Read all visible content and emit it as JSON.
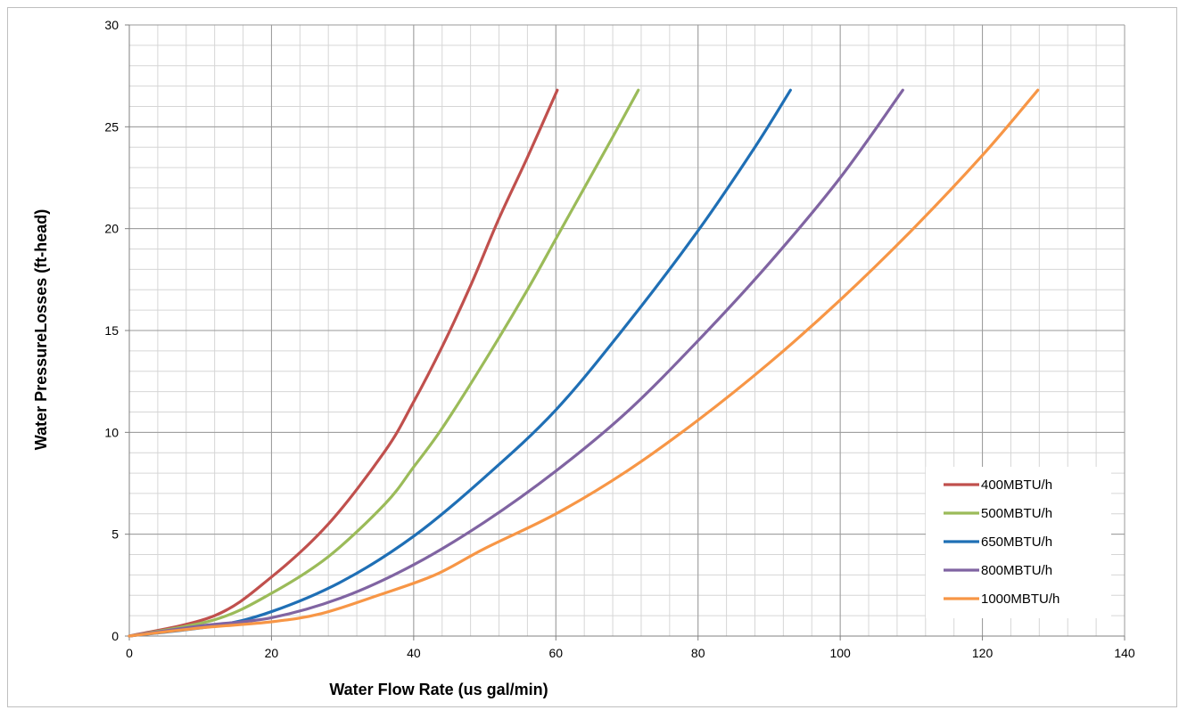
{
  "chart_data": {
    "type": "line",
    "title": "",
    "xlabel": "Water Flow Rate (us gal/min)",
    "ylabel": "Water PressureLosses (ft-head)",
    "xlim": [
      0,
      140
    ],
    "ylim": [
      0,
      30
    ],
    "x_ticks": [
      0,
      20,
      40,
      60,
      80,
      100,
      120,
      140
    ],
    "y_ticks": [
      0,
      5,
      10,
      15,
      20,
      25,
      30
    ],
    "x_ticks_labels": [
      "0",
      "20",
      "40",
      "60",
      "80",
      "100",
      "120",
      "140"
    ],
    "y_ticks_labels": [
      "0",
      "5",
      "10",
      "15",
      "20",
      "25",
      "30"
    ],
    "grid": true,
    "legend_position": "bottom-right",
    "series": [
      {
        "name": "400MBTU/h",
        "color": "#c0504d",
        "x": [
          0,
          12,
          20,
          28,
          36,
          40,
          44,
          48,
          52,
          56,
          60.2
        ],
        "y": [
          0,
          1.0,
          2.9,
          5.5,
          9.1,
          11.5,
          14.2,
          17.2,
          20.5,
          23.5,
          26.8
        ]
      },
      {
        "name": "500MBTU/h",
        "color": "#9bbb59",
        "x": [
          0,
          12,
          20,
          28,
          36,
          40,
          44,
          50,
          56,
          60,
          64,
          68,
          71.6
        ],
        "y": [
          0,
          0.8,
          2.1,
          3.9,
          6.5,
          8.3,
          10.2,
          13.5,
          17.0,
          19.5,
          22.0,
          24.5,
          26.8
        ]
      },
      {
        "name": "650MBTU/h",
        "color": "#1f6fb5",
        "x": [
          0,
          12,
          20,
          30,
          40,
          50,
          60,
          70,
          80,
          88,
          93
        ],
        "y": [
          0,
          0.5,
          1.2,
          2.7,
          4.9,
          7.8,
          11.1,
          15.3,
          19.9,
          24.0,
          26.8
        ]
      },
      {
        "name": "800MBTU/h",
        "color": "#8064a2",
        "x": [
          0,
          10,
          20,
          30,
          40,
          50,
          60,
          70,
          80,
          90,
          100,
          108.8
        ],
        "y": [
          0,
          0.5,
          0.9,
          1.9,
          3.5,
          5.6,
          8.1,
          11.0,
          14.5,
          18.3,
          22.5,
          26.8
        ]
      },
      {
        "name": "1000MBTU/h",
        "color": "#f79646",
        "x": [
          0,
          10,
          20,
          27,
          35,
          43,
          50,
          60,
          70,
          80,
          90,
          100,
          110,
          120,
          127.8
        ],
        "y": [
          0,
          0.4,
          0.7,
          1.1,
          2.0,
          3.0,
          4.3,
          6.0,
          8.1,
          10.6,
          13.4,
          16.5,
          19.9,
          23.6,
          26.8
        ]
      }
    ]
  }
}
